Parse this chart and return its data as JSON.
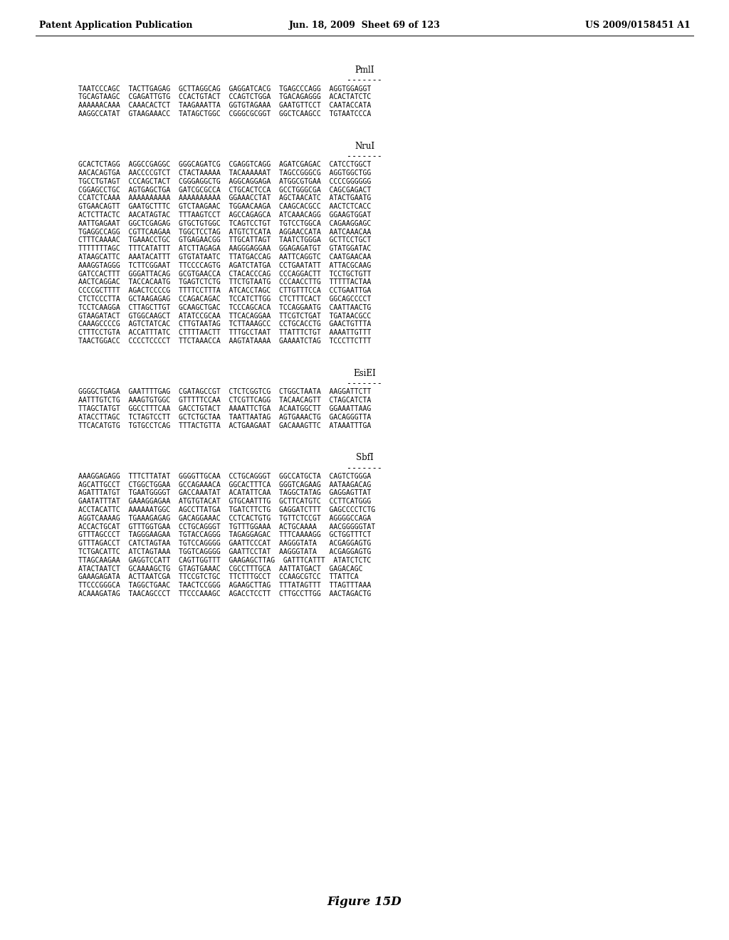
{
  "header_left": "Patent Application Publication",
  "header_center": "Jun. 18, 2009  Sheet 69 of 123",
  "header_right": "US 2009/0158451 A1",
  "figure_label": "Figure 15D",
  "background_color": "#ffffff",
  "text_color": "#000000",
  "sections": [
    {
      "label": "PmlI",
      "dashes": "-------",
      "lines": [
        "TAATCCCAGC  TACTTGAGAG  GCTTAGGCAG  GAGGATCACG  TGAGCCCAGG  AGGTGGAGGT",
        "TGCAGTAAGC  CGAGATTGTG  CCACTGTACT  CCAGTCTGGA  TGACAGAGGG  ACACTATCTC",
        "AAAAAACAAA  CAAACACTCT  TAAGAAATTA  GGTGTAGAAA  GAATGTTCCT  CAATACCATA",
        "AAGGCCATAT  GTAAGAAACC  TATAGCTGGC  CGGGCGCGGT  GGCTCAAGCC  TGTAATCCCA"
      ]
    },
    {
      "label": "NruI",
      "dashes": "-------",
      "lines": [
        "GCACTCTAGG  AGGCCGAGGC  GGGCAGATCG  CGAGGTCAGG  AGATCGAGAC  CATCCTGGCT",
        "AACACAGTGA  AACCCCGTCT  CTACTAAAAA  TACAAAAAAT  TAGCCGGGCG  AGGTGGCTGG",
        "TGCCTGTAGT  CCCAGCTACT  CGGGAGGCTG  AGGCAGGAGA  ATGGCGTGAA  CCCCGGGGGG",
        "CGGAGCCTGC  AGTGAGCTGA  GATCGCGCCA  CTGCACTCCA  GCCTGGGCGA  CAGCGAGACT",
        "CCATCTCAAA  AAAAAAAAAA  AAAAAAAAAA  GGAAACCTAT  AGCTAACATC  ATACTGAATG",
        "GTGAACAGTT  GAATGCTTTC  GTCTAAGAAC  TGGAACAAGA  CAAGCACGCC  AACTCTCACC",
        "ACTCTTACTC  AACATAGTAC  TTTAAGTCCT  AGCCAGAGCA  ATCAAACAGG  GGAAGTGGAT",
        "AATTGAGAAT  GGCTCGAGAG  GTGCTGTGGC  TCAGTCCTGT  TGTCCTGGCA  CAGAAGGAGC",
        "TGAGGCCAGG  CGTTCAAGAA  TGGCTCCTAG  ATGTCTCATA  AGGAACCATA  AATCAAACAA",
        "CTTTCAAAAC  TGAAACCTGC  GTGAGAACGG  TTGCATTAGT  TAATCTGGGA  GCTTCCTGCT",
        "TTTTTTTАGC  TTTCATATTT  ATCTTAGAGA  AAGGGAGGAA  GGAGAGATGT  GTATGGATAC",
        "ATAAGCATTC  AAATACATTT  GTGTATAATC  TTATGACCAG  AATTCAGGTC  CAATGAACAA",
        "AAAGGTAGGG  TCTTCGGAAT  TTCCCCAGTG  AGATCTATGA  CCTGAATATT  ATTACGCAAG",
        "GATCCACTTT  GGGATTACAG  GCGTGAACCA  CTACACCCAG  CCCAGGACTT  TCCTGCTGTT",
        "AACTCAGGAC  TACCACAATG  TGAGTCTCTG  TTCTGTAATG  CCCAACCTTG  TTTTTACTAA",
        "CCCCGCTTTT  AGACTCCCCG  TTTTCCTTTA  ATCACCTAGC  CTTGTTTCCA  CCTGAATTGA",
        "CTCTCCCTTA  GCTAAGAGAG  CCAGACAGAC  TCCATCTTGG  CTCTTTCACT  GGCAGCCCCT",
        "TCCTCAAGGA  CTTAGCTTGT  GCAAGCTGAC  TCCCAGCACA  TCCAGGAATG  CAATTAACTG",
        "GTAAGATACT  GTGGCAAGCT  ATATCCGCAA  TTCACAGGAA  TTCGTCTGAT  TGATAACGCC",
        "CAAAGCCCCG  AGTCTATCAC  CTTGTAATAG  TCTTAAAGCC  CCTGCACCTG  GAACTGTTTA",
        "CTTTCCTGTA  ACCATTTATC  CTTTTAACTT  TTTGCCTAAT  TTATTTCTGT  AAAATTGTTT",
        "TAACTGGACC  CCCCTCCCCT  TTCTAAACCA  AAGTATAAAA  GAAAATCTAG  TCCCTTCTTT"
      ]
    },
    {
      "label": "EsiEI",
      "dashes": "-------",
      "lines": [
        "GGGGCTGAGA  GAATTTTGAG  CGATAGCCGT  CTCTCGGTCG  CTGGCTAATA  AAGGATTCTT",
        "AATTTGTCTG  AAAGTGTGGC  GTTTTTCCAA  CTCGTTCAGG  TACAACAGTT  CTAGCATCTA",
        "TTAGCTATGT  GGCCTTTCAA  GACCTGTACT  AAAATTCTGA  ACAATGGCTT  GGAAATTAAG",
        "ATACCTTAGC  TCTAGTCCTT  GCTCTGCTAA  TAATTAATAG  AGTGAAACTG  GACAGGGTTA",
        "TTCACATGTG  TGTGCCTCAG  TTTACTGTTA  ACTGAAGAAT  GACAAAGTTC  ATAAATTTGA"
      ]
    },
    {
      "label": "SbfI",
      "dashes": "-------",
      "lines": [
        "AAAGGAGAGG  TTTCTTATAT  GGGGTTGCAA  CCTGCAGGGT  GGCCATGCTA  CAGTCTGGGA",
        "AGCATTGCCT  CTGGCTGGAA  GCCAGAAACA  GGCACTTTCA  GGGTCAGAAG  AATAAGACAG",
        "AGATTTATGT  TGAATGGGGT  GACCAAATAT  ACATATTCAA  TAGGCTATAG  GAGGAGTTAT",
        "GAATATTTAT  GAAAGGAGAA  ATGTGTACAT  GTGCAATTTG  GCTTCATGTC  CCTTCATGGG",
        "ACCTACATTC  AAAAAATGGC  AGCCTTATGA  TGATCTTCTG  GAGGATCTTT  GAGCCCCTCTG",
        "AGGTCAAAAG  TGAAAGAGAG  GACAGGAAAC  CCTCACTGTG  TGTTCTCCGT  AGGGGCCAGA",
        "ACCACTGCAT  GTTTGGTGAA  CCTGCAGGGT  TGTTTGGAAA  ACTGCAAAA   AACGGGGGTAT",
        "GTTTAGCCCT  TAGGGAAGAA  TGTACCAGGG  TAGAGGAGAC  TTTCAAAAGG  GCTGGTTTCT",
        "GTTTAGACCT  CATCTAGTAA  TGTCCAGGGG  GAATTCCCAT  AAGGGTATA   ACGAGGAGTG",
        "TCTGACATTC  ATCTAGTAAA  TGGTCAGGGG  GAATTCCTAT  AAGGGTATA   ACGAGGAGTG",
        "TTAGCAAGAA  GAGGTCCATT  CAGTTGGTTT  GAAGAGCTTAG  GATTTCATTT  ATATCTCTC",
        "ATACTAATCT  GCAAAAGCTG  GTAGTGAAAC  CGCCTTTGCA  AATTATGACT  GAGACAGC",
        "GAAAGAGATA  ACTTAATCGA  TTCCGTCTGC  TTCTTTGCCT  CCAAGCGTCC  TTATTCA",
        "TTCCCGGGCA  TAGGCTGAAC  TAACTCCGGG  AGAAGCTTAG  TTTATAGTTT  TTAGTTTAAA",
        "ACAAAGATAG  TAACAGCCCT  TTCCCAAAGC  AGACCTCCTT  CTTGCCTTGG  AACTAGACTG"
      ]
    }
  ]
}
